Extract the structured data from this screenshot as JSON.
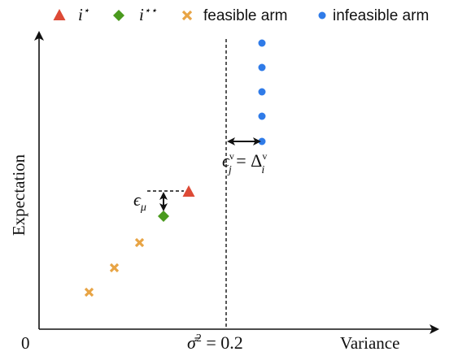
{
  "legend": {
    "best_arm": "i",
    "best_arm_sup": "⋆",
    "second_arm": "i",
    "second_arm_sup": "⋆⋆",
    "feasible": "feasible arm",
    "infeasible": "infeasible arm"
  },
  "axes": {
    "origin": "0",
    "xlabel": "Variance",
    "ylabel": "Expectation"
  },
  "threshold": {
    "label_main": "σ̄",
    "label_sup": "2",
    "label_rest": " = 0.2"
  },
  "annotations": {
    "eps_mu": "ϵ",
    "eps_mu_sub": "μ",
    "eps_v_left": "ϵ",
    "eps_v_left_sup": "v",
    "eps_v_left_sub": "j",
    "eps_v_eq": " = Δ",
    "eps_v_right_sup": "v",
    "eps_v_right_sub": "i"
  },
  "colors": {
    "best_arm": "#dd4a36",
    "second_arm": "#4a9a1e",
    "feasible": "#e8a445",
    "infeasible": "#2f7be8",
    "axis": "#111111"
  }
}
